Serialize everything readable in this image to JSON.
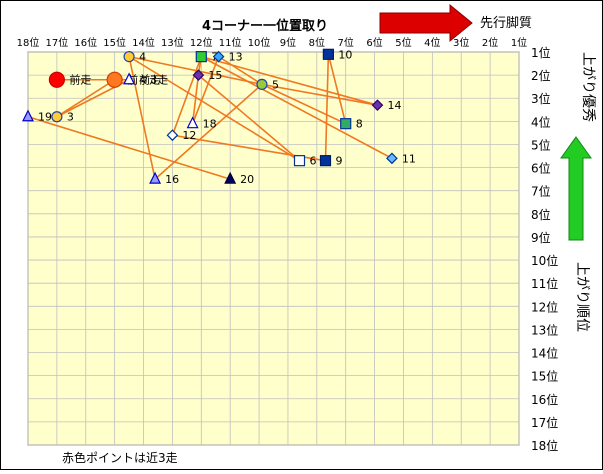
{
  "chart_data": {
    "type": "scatter",
    "title": "4コーナー一位置取り",
    "x_axis": {
      "label": "先行脚質",
      "ticks": [
        "18位",
        "17位",
        "16位",
        "15位",
        "14位",
        "13位",
        "12位",
        "11位",
        "10位",
        "9位",
        "8位",
        "7位",
        "6位",
        "5位",
        "4位",
        "3位",
        "2位",
        "1位"
      ],
      "range": [
        18,
        1
      ]
    },
    "y_axis": {
      "label_top": "上がり優秀",
      "label_bottom": "上がり順位",
      "ticks": [
        "1位",
        "2位",
        "3位",
        "4位",
        "5位",
        "6位",
        "7位",
        "8位",
        "9位",
        "10位",
        "11位",
        "12位",
        "13位",
        "14位",
        "15位",
        "16位",
        "17位",
        "18位"
      ],
      "range": [
        1,
        18
      ]
    },
    "grid": true,
    "footnote": "赤色ポイントは近3走",
    "colors": {
      "plot_bg": "#ffffcc",
      "line": "#f07820",
      "grid": "#bfbfbf",
      "arrow_red": "#dd0000",
      "arrow_green": "#22cc22"
    },
    "points": [
      {
        "label": "前走",
        "x": 17.0,
        "y": 2.2,
        "shape": "circle",
        "fill": "#ff0000",
        "stroke": "#cc0000",
        "big": true
      },
      {
        "label": "前々走",
        "x": 15.0,
        "y": 2.2,
        "shape": "circle",
        "fill": "#ff7722",
        "stroke": "#cc4400",
        "big": true
      },
      {
        "label": "前3走",
        "x": 14.5,
        "y": 2.2,
        "shape": "triangle",
        "fill": "#ffffff",
        "stroke": "#0000cc"
      },
      {
        "label": "4",
        "x": 14.5,
        "y": 1.2,
        "shape": "circle",
        "fill": "#ffcc33",
        "stroke": "#2244aa"
      },
      {
        "label": "7",
        "x": 12.0,
        "y": 1.2,
        "shape": "square",
        "fill": "#33cc33",
        "stroke": "#003399"
      },
      {
        "label": "13",
        "x": 11.4,
        "y": 1.2,
        "shape": "diamond",
        "fill": "#33aaff",
        "stroke": "#003399"
      },
      {
        "label": "10",
        "x": 7.6,
        "y": 1.1,
        "shape": "square",
        "fill": "#003399",
        "stroke": "#001a66"
      },
      {
        "label": "15",
        "x": 12.1,
        "y": 2.0,
        "shape": "diamond",
        "fill": "#6633aa",
        "stroke": "#330066"
      },
      {
        "label": "5",
        "x": 9.9,
        "y": 2.4,
        "shape": "circle",
        "fill": "#99cc33",
        "stroke": "#2244aa"
      },
      {
        "label": "14",
        "x": 5.9,
        "y": 3.3,
        "shape": "diamond",
        "fill": "#6633aa",
        "stroke": "#330066"
      },
      {
        "label": "19",
        "x": 18.0,
        "y": 3.8,
        "shape": "triangle",
        "fill": "#9999ff",
        "stroke": "#0000cc"
      },
      {
        "label": "3",
        "x": 17.0,
        "y": 3.8,
        "shape": "circle",
        "fill": "#ffcc33",
        "stroke": "#2244aa"
      },
      {
        "label": "18",
        "x": 12.3,
        "y": 4.1,
        "shape": "triangle",
        "fill": "#ffffff",
        "stroke": "#0000cc"
      },
      {
        "label": "8",
        "x": 7.0,
        "y": 4.1,
        "shape": "square",
        "fill": "#33aa66",
        "stroke": "#003399"
      },
      {
        "label": "12",
        "x": 13.0,
        "y": 4.6,
        "shape": "diamond",
        "fill": "#ffffff",
        "stroke": "#003399"
      },
      {
        "label": "6",
        "x": 8.6,
        "y": 5.7,
        "shape": "square",
        "fill": "#ffffff",
        "stroke": "#003399"
      },
      {
        "label": "9",
        "x": 7.7,
        "y": 5.7,
        "shape": "square",
        "fill": "#003399",
        "stroke": "#001a66"
      },
      {
        "label": "11",
        "x": 5.4,
        "y": 5.6,
        "shape": "diamond",
        "fill": "#66bbff",
        "stroke": "#003399"
      },
      {
        "label": "16",
        "x": 13.6,
        "y": 6.5,
        "shape": "triangle",
        "fill": "#9999ff",
        "stroke": "#0000cc"
      },
      {
        "label": "20",
        "x": 11.0,
        "y": 6.5,
        "shape": "triangle",
        "fill": "#000066",
        "stroke": "#000033"
      }
    ],
    "connections": [
      [
        "前走",
        "前々走"
      ],
      [
        "前々走",
        "前3走"
      ],
      [
        "4",
        "5"
      ],
      [
        "4",
        "16"
      ],
      [
        "4",
        "6"
      ],
      [
        "7",
        "15"
      ],
      [
        "7",
        "14"
      ],
      [
        "7",
        "11"
      ],
      [
        "7",
        "12"
      ],
      [
        "13",
        "5"
      ],
      [
        "13",
        "18"
      ],
      [
        "15",
        "6"
      ],
      [
        "15",
        "18"
      ],
      [
        "5",
        "14"
      ],
      [
        "5",
        "8"
      ],
      [
        "10",
        "9"
      ],
      [
        "10",
        "8"
      ],
      [
        "3",
        "前3走"
      ],
      [
        "3",
        "前々走"
      ],
      [
        "19",
        "20"
      ],
      [
        "12",
        "9"
      ],
      [
        "16",
        "5"
      ]
    ]
  }
}
